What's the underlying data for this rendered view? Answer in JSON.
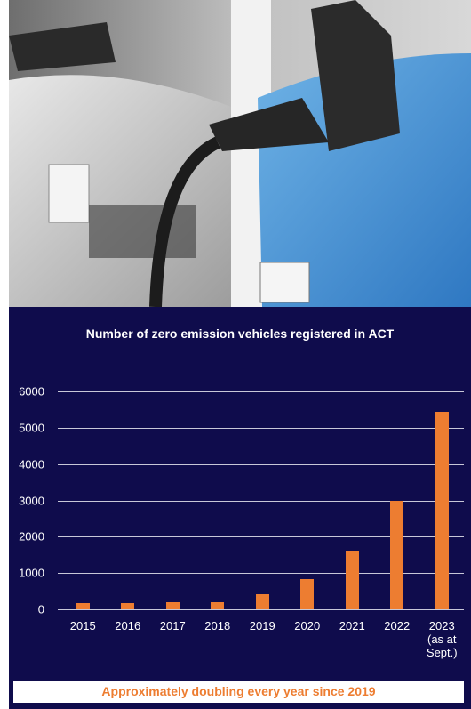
{
  "chart_data": {
    "type": "bar",
    "title": "Number of zero emission vehicles registered in ACT",
    "categories": [
      "2015",
      "2016",
      "2017",
      "2018",
      "2019",
      "2020",
      "2021",
      "2022",
      "2023 (as at Sept.)"
    ],
    "values": [
      170,
      170,
      200,
      200,
      420,
      830,
      1620,
      3000,
      5440
    ],
    "color": "#ed7d31",
    "ylim": [
      0,
      6000
    ],
    "yticks": [
      0,
      1000,
      2000,
      3000,
      4000,
      5000,
      6000
    ],
    "grid": true,
    "annotation": "Approximately doubling every year since 2019"
  }
}
